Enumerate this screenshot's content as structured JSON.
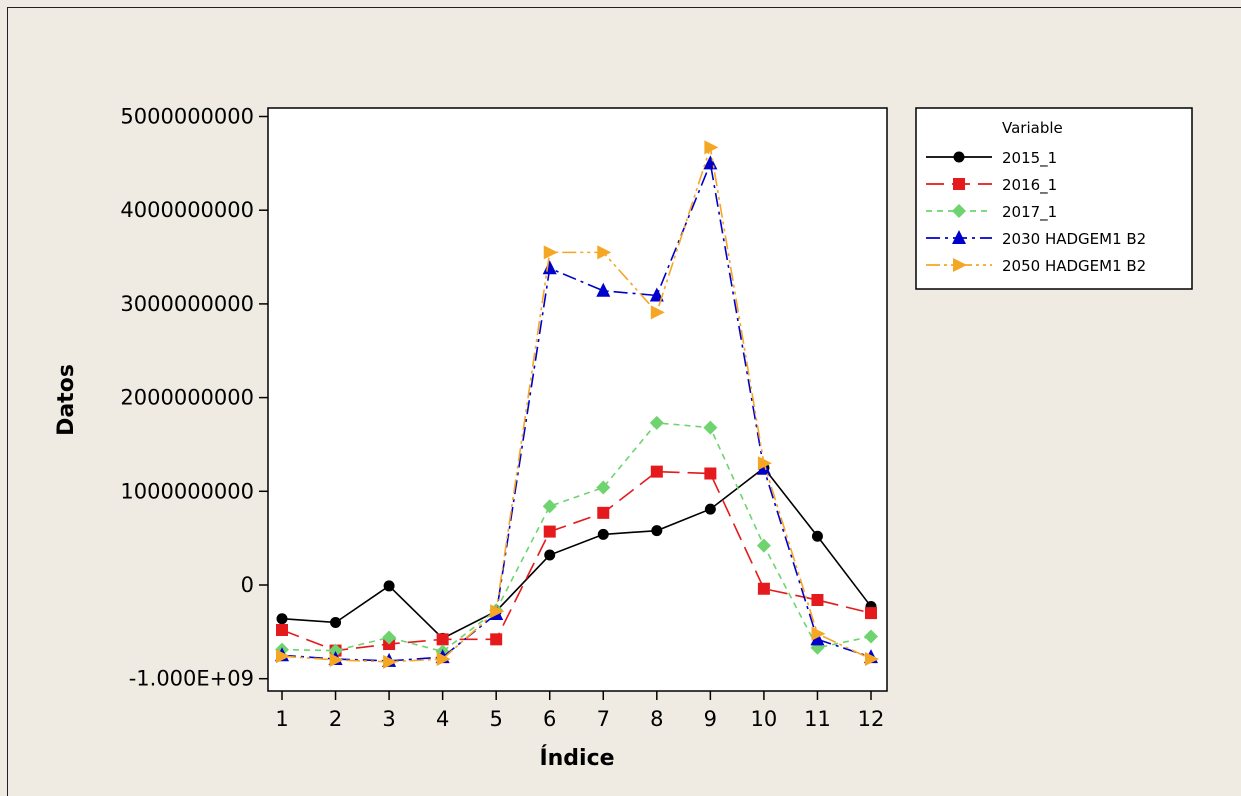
{
  "chart_data": {
    "type": "line",
    "xlabel": "Índice",
    "ylabel": "Datos",
    "x": [
      1,
      2,
      3,
      4,
      5,
      6,
      7,
      8,
      9,
      10,
      11,
      12
    ],
    "ylim": [
      -1100000000,
      5000000000
    ],
    "y_ticks": [
      -1000000000,
      0,
      1000000000,
      2000000000,
      3000000000,
      4000000000,
      5000000000
    ],
    "y_tick_labels": [
      "-1.000E+09",
      "0",
      "1000000000",
      "2000000000",
      "3000000000",
      "4000000000",
      "5000000000"
    ],
    "grid": false,
    "legend": {
      "title": "Variable",
      "placement": "right"
    },
    "series": [
      {
        "name": "2015_1",
        "color": "#000000",
        "marker": "circle",
        "dash": "solid",
        "values": [
          -360000000,
          -400000000,
          -10000000,
          -570000000,
          -280000000,
          320000000,
          540000000,
          580000000,
          810000000,
          1250000000,
          520000000,
          -230000000
        ]
      },
      {
        "name": "2016_1",
        "color": "#e41a1c",
        "marker": "square",
        "dash": "long",
        "values": [
          -480000000,
          -700000000,
          -630000000,
          -580000000,
          -580000000,
          570000000,
          770000000,
          1210000000,
          1190000000,
          -40000000,
          -160000000,
          -300000000
        ]
      },
      {
        "name": "2017_1",
        "color": "#6fd36f",
        "marker": "diamond",
        "dash": "short",
        "values": [
          -690000000,
          -700000000,
          -560000000,
          -710000000,
          -270000000,
          840000000,
          1040000000,
          1730000000,
          1680000000,
          420000000,
          -670000000,
          -550000000
        ]
      },
      {
        "name": "2030 HADGEM1 B2",
        "color": "#0000cc",
        "marker": "triangle-up",
        "dash": "dashdot",
        "values": [
          -750000000,
          -790000000,
          -810000000,
          -770000000,
          -310000000,
          3380000000,
          3140000000,
          3090000000,
          4500000000,
          1240000000,
          -580000000,
          -770000000
        ]
      },
      {
        "name": "2050 HADGEM1 B2",
        "color": "#f5a623",
        "marker": "triangle-right",
        "dash": "dashdotdot",
        "values": [
          -760000000,
          -800000000,
          -820000000,
          -790000000,
          -280000000,
          3550000000,
          3550000000,
          2910000000,
          4670000000,
          1300000000,
          -520000000,
          -790000000
        ]
      }
    ]
  }
}
